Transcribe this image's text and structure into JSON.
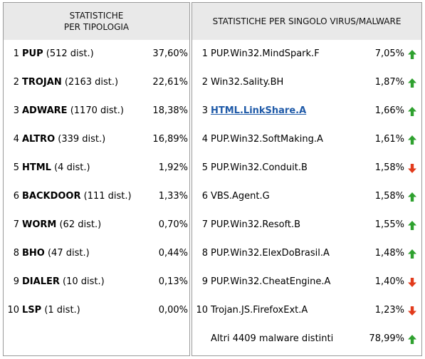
{
  "left_panel": {
    "title_line1": "STATISTICHE",
    "title_line2": "PER TIPOLOGIA",
    "rows": [
      {
        "rank": "1",
        "name": "PUP",
        "detail": "(512 dist.)",
        "percent": "37,60%"
      },
      {
        "rank": "2",
        "name": "TROJAN",
        "detail": "(2163 dist.)",
        "percent": "22,61%"
      },
      {
        "rank": "3",
        "name": "ADWARE",
        "detail": "(1170 dist.)",
        "percent": "18,38%"
      },
      {
        "rank": "4",
        "name": "ALTRO",
        "detail": "(339 dist.)",
        "percent": "16,89%"
      },
      {
        "rank": "5",
        "name": "HTML",
        "detail": "(4 dist.)",
        "percent": "1,92%"
      },
      {
        "rank": "6",
        "name": "BACKDOOR",
        "detail": "(111 dist.)",
        "percent": "1,33%"
      },
      {
        "rank": "7",
        "name": "WORM",
        "detail": "(62 dist.)",
        "percent": "0,70%"
      },
      {
        "rank": "8",
        "name": "BHO",
        "detail": "(47 dist.)",
        "percent": "0,44%"
      },
      {
        "rank": "9",
        "name": "DIALER",
        "detail": "(10 dist.)",
        "percent": "0,13%"
      },
      {
        "rank": "10",
        "name": "LSP",
        "detail": "(1 dist.)",
        "percent": "0,00%"
      }
    ]
  },
  "right_panel": {
    "title": "STATISTICHE PER SINGOLO VIRUS/MALWARE",
    "rows": [
      {
        "rank": "1",
        "name": "PUP.Win32.MindSpark.F",
        "percent": "7,05%",
        "trend": "up"
      },
      {
        "rank": "2",
        "name": "Win32.Sality.BH",
        "percent": "1,87%",
        "trend": "up"
      },
      {
        "rank": "3",
        "name": "HTML.LinkShare.A",
        "percent": "1,66%",
        "trend": "up"
      },
      {
        "rank": "4",
        "name": "PUP.Win32.SoftMaking.A",
        "percent": "1,61%",
        "trend": "up"
      },
      {
        "rank": "5",
        "name": "PUP.Win32.Conduit.B",
        "percent": "1,58%",
        "trend": "down"
      },
      {
        "rank": "6",
        "name": "VBS.Agent.G",
        "percent": "1,58%",
        "trend": "up"
      },
      {
        "rank": "7",
        "name": "PUP.Win32.Resoft.B",
        "percent": "1,55%",
        "trend": "up"
      },
      {
        "rank": "8",
        "name": "PUP.Win32.ElexDoBrasil.A",
        "percent": "1,48%",
        "trend": "up"
      },
      {
        "rank": "9",
        "name": "PUP.Win32.CheatEngine.A",
        "percent": "1,40%",
        "trend": "down"
      },
      {
        "rank": "10",
        "name": "Trojan.JS.FirefoxExt.A",
        "percent": "1,23%",
        "trend": "down"
      }
    ],
    "footer": {
      "label": "Altri 4409 malware distinti",
      "percent": "78,99%",
      "trend": "up"
    }
  },
  "colors": {
    "up": "#2fa12f",
    "down": "#e23b1c",
    "link": "#1f5aa8",
    "header_bg": "#e9e9e9",
    "border": "#9a9a9a"
  }
}
